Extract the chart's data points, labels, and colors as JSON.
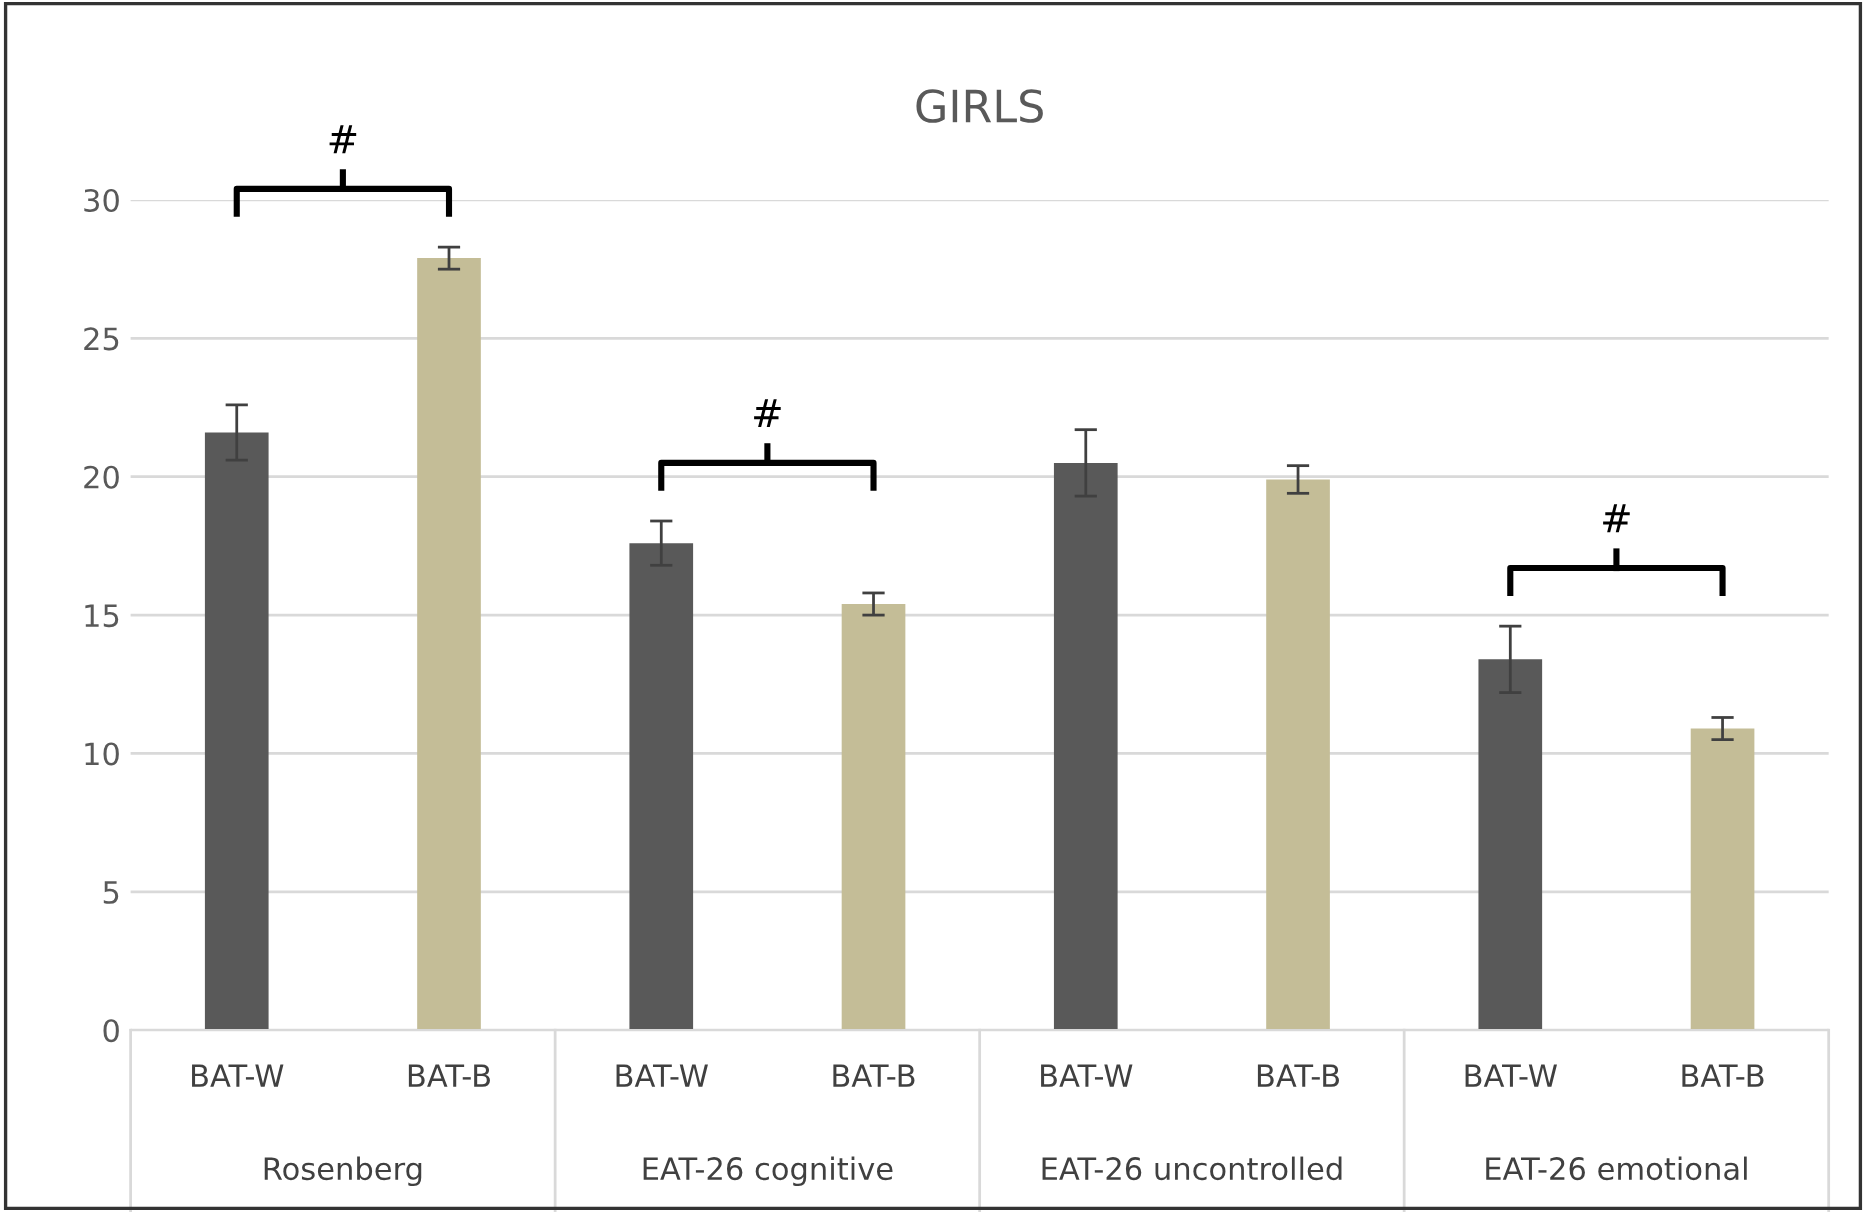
{
  "chart_data": {
    "type": "bar",
    "title": "GIRLS",
    "categories": [
      "BAT-W",
      "BAT-B",
      "BAT-W",
      "BAT-B",
      "BAT-W",
      "BAT-B",
      "BAT-W",
      "BAT-B"
    ],
    "values": [
      21.6,
      27.9,
      17.6,
      15.4,
      20.5,
      19.9,
      13.4,
      10.9
    ],
    "errors": [
      1.0,
      0.4,
      0.8,
      0.4,
      1.2,
      0.5,
      1.2,
      0.4
    ],
    "colors": [
      "#595959",
      "#c4bd97",
      "#595959",
      "#c4bd97",
      "#595959",
      "#c4bd97",
      "#595959",
      "#c4bd97"
    ],
    "ylim": [
      0,
      30
    ],
    "yticks": [
      0,
      5,
      10,
      15,
      20,
      25,
      30
    ],
    "grid": "y",
    "annotations": [
      "Rosenberg",
      "EAT-26 cognitive",
      "EAT-26 uncontrolled",
      "EAT-26 emotional",
      "#",
      "#",
      "#"
    ]
  }
}
